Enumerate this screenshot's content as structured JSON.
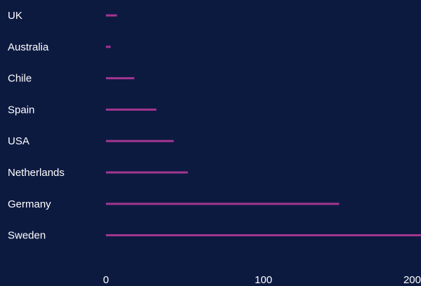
{
  "colors": {
    "background": "#0d1a40",
    "bar": "#a3358f",
    "text": "#ffffff"
  },
  "chart_data": {
    "type": "bar",
    "orientation": "horizontal",
    "categories": [
      "UK",
      "Australia",
      "Chile",
      "Spain",
      "USA",
      "Netherlands",
      "Germany",
      "Sweden"
    ],
    "values": [
      7,
      3,
      18,
      32,
      43,
      52,
      148,
      200
    ],
    "xlim": [
      0,
      200
    ],
    "xticks": [
      0,
      100,
      200
    ],
    "grid": false,
    "legend": "none"
  }
}
